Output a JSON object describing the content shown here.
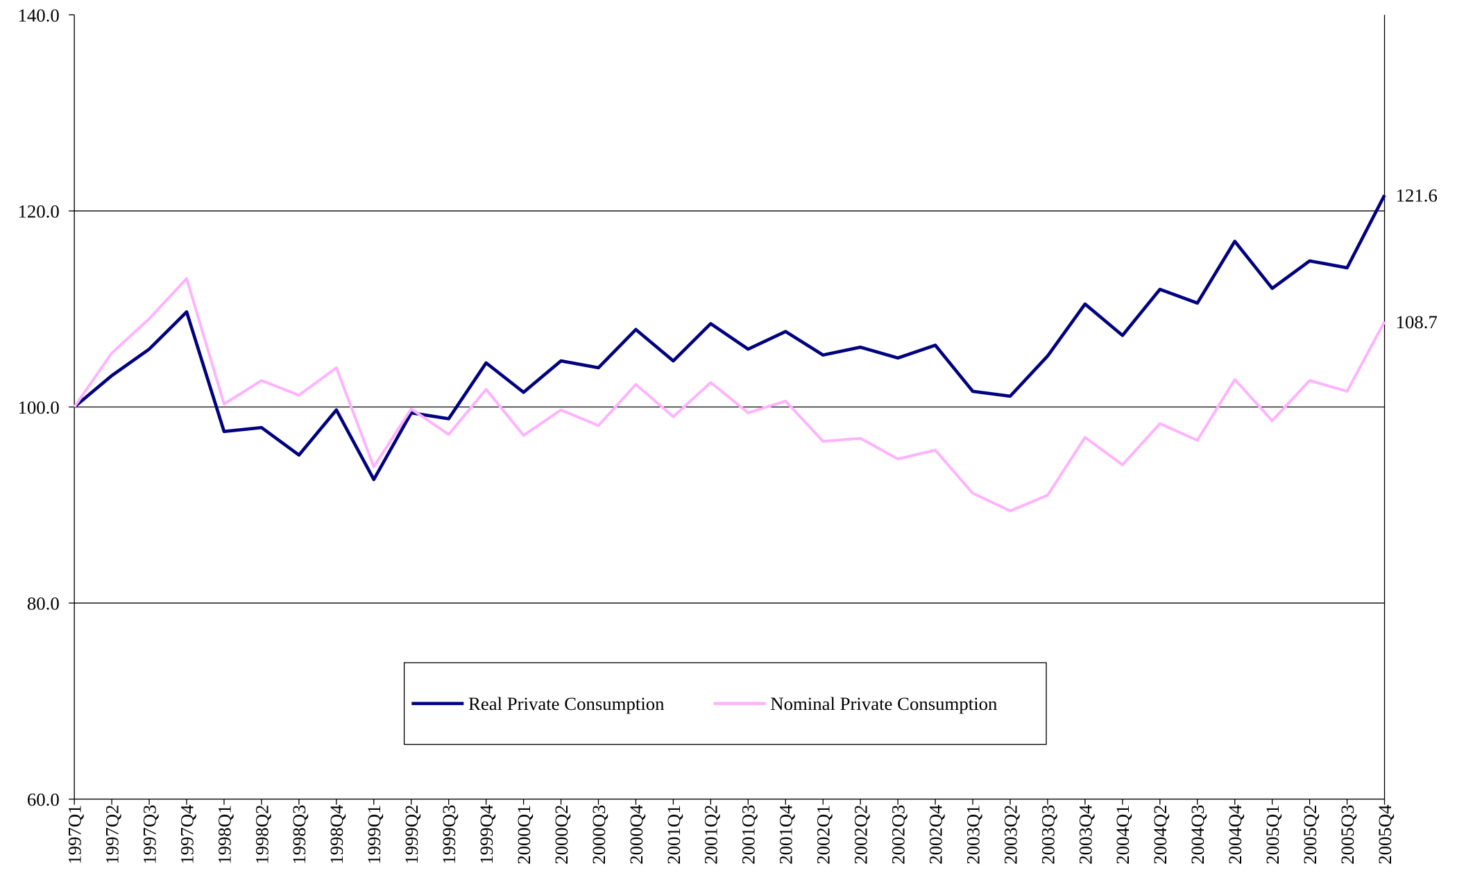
{
  "chart_data": {
    "type": "line",
    "categories": [
      "1997Q1",
      "1997Q2",
      "1997Q3",
      "1997Q4",
      "1998Q1",
      "1998Q2",
      "1998Q3",
      "1998Q4",
      "1999Q1",
      "1999Q2",
      "1999Q3",
      "1999Q4",
      "2000Q1",
      "2000Q2",
      "2000Q3",
      "2000Q4",
      "2001Q1",
      "2001Q2",
      "2001Q3",
      "2001Q4",
      "2002Q1",
      "2002Q2",
      "2002Q3",
      "2002Q4",
      "2003Q1",
      "2003Q2",
      "2003Q3",
      "2003Q4",
      "2004Q1",
      "2004Q2",
      "2004Q3",
      "2004Q4",
      "2005Q1",
      "2005Q2",
      "2005Q3",
      "2005Q4"
    ],
    "series": [
      {
        "name": "Real Private Consumption",
        "color": "#000080",
        "values": [
          100.0,
          103.2,
          105.9,
          109.7,
          97.5,
          97.9,
          95.1,
          99.7,
          92.6,
          99.4,
          98.8,
          104.5,
          101.5,
          104.7,
          104.0,
          107.9,
          104.7,
          108.5,
          105.9,
          107.7,
          105.3,
          106.1,
          105.0,
          106.3,
          101.6,
          101.1,
          105.2,
          110.5,
          107.3,
          112.0,
          110.6,
          116.9,
          112.1,
          114.9,
          114.2,
          121.6
        ]
      },
      {
        "name": "Nominal Private Consumption",
        "color": "#ffb3ff",
        "values": [
          100.0,
          105.5,
          109.0,
          113.1,
          100.3,
          102.7,
          101.2,
          104.0,
          93.9,
          99.8,
          97.2,
          101.8,
          97.1,
          99.7,
          98.1,
          102.3,
          99.0,
          102.5,
          99.4,
          100.6,
          96.5,
          96.8,
          94.7,
          95.6,
          91.2,
          89.4,
          91.0,
          96.9,
          94.1,
          98.3,
          96.6,
          102.8,
          98.6,
          102.7,
          101.6,
          108.7
        ]
      }
    ],
    "ylim": [
      60,
      140
    ],
    "yticks": [
      {
        "value": 60,
        "label": "60.0"
      },
      {
        "value": 80,
        "label": "80.0"
      },
      {
        "value": 100,
        "label": "100.0"
      },
      {
        "value": 120,
        "label": "120.0"
      },
      {
        "value": 140,
        "label": "140.0"
      }
    ],
    "grid": true,
    "legend": "lower center"
  }
}
